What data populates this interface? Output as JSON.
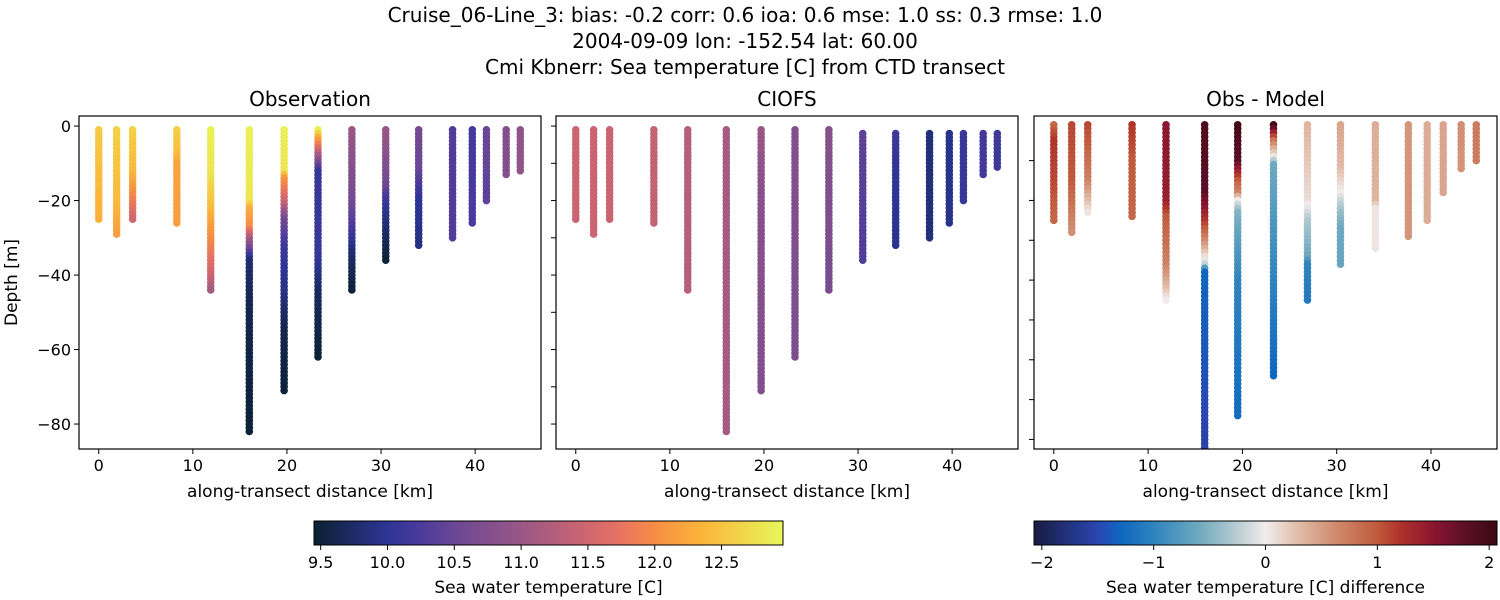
{
  "title_lines": [
    "Cruise_06-Line_3: bias: -0.2  corr: 0.6  ioa: 0.6  mse: 1.0  ss: 0.3  rmse: 1.0",
    "2004-09-09 lon: -152.54 lat: 60.00",
    "Cmi Kbnerr: Sea temperature [C] from CTD transect"
  ],
  "chart_data": [
    {
      "type": "scatter",
      "title": "Observation",
      "xlabel": "along-transect distance [km]",
      "ylabel": "Depth [m]",
      "xlim": [
        -2.1,
        47
      ],
      "ylim": [
        -86.7,
        2.7
      ],
      "xticks": [
        0,
        10,
        20,
        30,
        40
      ],
      "yticks": [
        0,
        -20,
        -40,
        -60,
        -80
      ],
      "colorbar": "temp",
      "stations": [
        {
          "x": 0,
          "profile": [
            [
              -1,
              12.55
            ],
            [
              -25,
              12.3
            ]
          ]
        },
        {
          "x": 1.9,
          "profile": [
            [
              -1,
              12.6
            ],
            [
              -20,
              12.4
            ],
            [
              -29,
              12.15
            ]
          ]
        },
        {
          "x": 3.6,
          "profile": [
            [
              -1,
              12.6
            ],
            [
              -12,
              12.4
            ],
            [
              -18,
              12.0
            ],
            [
              -25,
              11.5
            ]
          ]
        },
        {
          "x": 8.3,
          "profile": [
            [
              -1,
              12.6
            ],
            [
              -8,
              12.4
            ],
            [
              -10,
              12.2
            ],
            [
              -26,
              12.15
            ]
          ]
        },
        {
          "x": 11.9,
          "profile": [
            [
              -1,
              12.9
            ],
            [
              -12,
              12.8
            ],
            [
              -20,
              12.5
            ],
            [
              -28,
              12.1
            ],
            [
              -40,
              11.5
            ],
            [
              -44,
              11.1
            ]
          ]
        },
        {
          "x": 16.0,
          "profile": [
            [
              -1,
              12.9
            ],
            [
              -20,
              12.8
            ],
            [
              -22,
              12.3
            ],
            [
              -27,
              12.0
            ],
            [
              -30,
              11.2
            ],
            [
              -34,
              10.3
            ],
            [
              -36,
              9.8
            ],
            [
              -50,
              9.6
            ],
            [
              -82,
              9.5
            ]
          ]
        },
        {
          "x": 19.7,
          "profile": [
            [
              -1,
              12.9
            ],
            [
              -12,
              12.8
            ],
            [
              -14,
              12.1
            ],
            [
              -20,
              11.5
            ],
            [
              -25,
              10.6
            ],
            [
              -33,
              10.1
            ],
            [
              -45,
              9.9
            ],
            [
              -55,
              9.6
            ],
            [
              -71,
              9.5
            ]
          ]
        },
        {
          "x": 23.3,
          "profile": [
            [
              -1,
              12.9
            ],
            [
              -3,
              12.3
            ],
            [
              -6,
              11.6
            ],
            [
              -10,
              10.6
            ],
            [
              -12,
              10.1
            ],
            [
              -35,
              10.1
            ],
            [
              -45,
              9.7
            ],
            [
              -62,
              9.5
            ]
          ]
        },
        {
          "x": 26.9,
          "profile": [
            [
              -1,
              11.0
            ],
            [
              -20,
              10.6
            ],
            [
              -28,
              10.2
            ],
            [
              -34,
              9.8
            ],
            [
              -44,
              9.5
            ]
          ]
        },
        {
          "x": 30.5,
          "profile": [
            [
              -1,
              11.0
            ],
            [
              -15,
              10.6
            ],
            [
              -22,
              10.0
            ],
            [
              -30,
              9.7
            ],
            [
              -36,
              9.5
            ]
          ]
        },
        {
          "x": 34.0,
          "profile": [
            [
              -1,
              10.6
            ],
            [
              -12,
              10.5
            ],
            [
              -20,
              10.0
            ],
            [
              -32,
              9.9
            ]
          ]
        },
        {
          "x": 37.6,
          "profile": [
            [
              -1,
              10.3
            ],
            [
              -30,
              10.3
            ]
          ]
        },
        {
          "x": 39.7,
          "profile": [
            [
              -1,
              10.2
            ],
            [
              -26,
              10.25
            ]
          ]
        },
        {
          "x": 41.2,
          "profile": [
            [
              -1,
              10.5
            ],
            [
              -20,
              10.4
            ]
          ]
        },
        {
          "x": 43.3,
          "profile": [
            [
              -1,
              10.75
            ],
            [
              -13,
              10.75
            ]
          ]
        },
        {
          "x": 44.8,
          "profile": [
            [
              -1,
              10.9
            ],
            [
              -12,
              10.9
            ]
          ]
        }
      ]
    },
    {
      "type": "scatter",
      "title": "CIOFS",
      "xlabel": "along-transect distance [km]",
      "xlim": [
        -2.1,
        47
      ],
      "ylim": [
        -86.7,
        2.7
      ],
      "xticks": [
        0,
        10,
        20,
        30,
        40
      ],
      "yticks": [
        0,
        -10,
        -20,
        -30,
        -40,
        -50,
        -60,
        -70,
        -80
      ],
      "colorbar": "temp",
      "stations": [
        {
          "x": 0,
          "profile": [
            [
              -1,
              11.45
            ],
            [
              -25,
              11.45
            ]
          ]
        },
        {
          "x": 1.9,
          "profile": [
            [
              -1,
              11.45
            ],
            [
              -29,
              11.45
            ]
          ]
        },
        {
          "x": 3.6,
          "profile": [
            [
              -1,
              11.45
            ],
            [
              -25,
              11.45
            ]
          ]
        },
        {
          "x": 8.3,
          "profile": [
            [
              -1,
              11.4
            ],
            [
              -26,
              11.4
            ]
          ]
        },
        {
          "x": 11.9,
          "profile": [
            [
              -1,
              11.25
            ],
            [
              -44,
              11.25
            ]
          ]
        },
        {
          "x": 16.0,
          "profile": [
            [
              -1,
              11.1
            ],
            [
              -82,
              11.1
            ]
          ]
        },
        {
          "x": 19.7,
          "profile": [
            [
              -1,
              11.0
            ],
            [
              -20,
              10.8
            ],
            [
              -71,
              10.75
            ]
          ]
        },
        {
          "x": 23.3,
          "profile": [
            [
              -1,
              10.75
            ],
            [
              -62,
              10.7
            ]
          ]
        },
        {
          "x": 26.9,
          "profile": [
            [
              -1,
              10.8
            ],
            [
              -44,
              10.65
            ]
          ]
        },
        {
          "x": 30.5,
          "profile": [
            [
              -2,
              10.4
            ],
            [
              -36,
              10.3
            ]
          ]
        },
        {
          "x": 34.0,
          "profile": [
            [
              -2,
              10.15
            ],
            [
              -10,
              10.05
            ],
            [
              -32,
              9.95
            ]
          ]
        },
        {
          "x": 37.6,
          "profile": [
            [
              -2,
              9.85
            ],
            [
              -30,
              9.85
            ]
          ]
        },
        {
          "x": 39.7,
          "profile": [
            [
              -2,
              9.95
            ],
            [
              -26,
              9.95
            ]
          ]
        },
        {
          "x": 41.2,
          "profile": [
            [
              -2,
              10.1
            ],
            [
              -20,
              10.1
            ]
          ]
        },
        {
          "x": 43.3,
          "profile": [
            [
              -2,
              10.2
            ],
            [
              -13,
              10.2
            ]
          ]
        },
        {
          "x": 44.8,
          "profile": [
            [
              -2,
              10.15
            ],
            [
              -11,
              10.15
            ]
          ]
        }
      ]
    },
    {
      "type": "scatter",
      "title": "Obs - Model",
      "xlabel": "along-transect distance [km]",
      "xlim": [
        -2.1,
        47
      ],
      "ylim": [
        -82.4,
        1.2
      ],
      "xticks": [
        0,
        10,
        20,
        30,
        40
      ],
      "yticks": [
        -10,
        -20,
        -30,
        -40,
        -50,
        -60,
        -70,
        -80
      ],
      "colorbar": "diff",
      "stations": [
        {
          "x": 0,
          "profile": [
            [
              -1,
              0.9
            ],
            [
              -5,
              1.2
            ],
            [
              -15,
              1.1
            ],
            [
              -25,
              0.9
            ]
          ]
        },
        {
          "x": 1.9,
          "profile": [
            [
              -1,
              1.1
            ],
            [
              -15,
              1.0
            ],
            [
              -28,
              0.6
            ]
          ]
        },
        {
          "x": 3.6,
          "profile": [
            [
              -1,
              1.1
            ],
            [
              -15,
              0.7
            ],
            [
              -20,
              0.3
            ],
            [
              -23,
              0.05
            ]
          ]
        },
        {
          "x": 8.3,
          "profile": [
            [
              -1,
              1.2
            ],
            [
              -10,
              1.0
            ],
            [
              -24,
              0.9
            ]
          ]
        },
        {
          "x": 11.9,
          "profile": [
            [
              -1,
              1.5
            ],
            [
              -20,
              1.4
            ],
            [
              -24,
              1.0
            ],
            [
              -36,
              0.7
            ],
            [
              -42,
              0.3
            ],
            [
              -45,
              0.0
            ]
          ]
        },
        {
          "x": 16.0,
          "profile": [
            [
              -1,
              1.9
            ],
            [
              -18,
              1.8
            ],
            [
              -24,
              1.3
            ],
            [
              -28,
              0.9
            ],
            [
              -32,
              0.4
            ],
            [
              -36,
              -0.2
            ],
            [
              -38,
              -1.3
            ],
            [
              -60,
              -1.4
            ],
            [
              -90,
              -1.6
            ]
          ]
        },
        {
          "x": 19.5,
          "profile": [
            [
              -1,
              2.0
            ],
            [
              -10,
              1.8
            ],
            [
              -15,
              1.0
            ],
            [
              -18,
              0.7
            ],
            [
              -20,
              0.0
            ],
            [
              -23,
              -0.5
            ],
            [
              -30,
              -0.7
            ],
            [
              -40,
              -1.0
            ],
            [
              -74,
              -1.25
            ]
          ]
        },
        {
          "x": 23.3,
          "profile": [
            [
              -1,
              2.0
            ],
            [
              -3,
              1.4
            ],
            [
              -5,
              0.8
            ],
            [
              -7,
              0.4
            ],
            [
              -9,
              0.05
            ],
            [
              -11,
              -0.6
            ],
            [
              -40,
              -1.0
            ],
            [
              -64,
              -1.3
            ]
          ]
        },
        {
          "x": 26.9,
          "profile": [
            [
              -1,
              0.35
            ],
            [
              -20,
              0.1
            ],
            [
              -25,
              -0.3
            ],
            [
              -34,
              -0.6
            ],
            [
              -36,
              -1.0
            ],
            [
              -45,
              -1.1
            ]
          ]
        },
        {
          "x": 30.4,
          "profile": [
            [
              -1,
              0.45
            ],
            [
              -12,
              0.3
            ],
            [
              -18,
              0.0
            ],
            [
              -23,
              -0.4
            ],
            [
              -27,
              -0.6
            ],
            [
              -36,
              -0.65
            ]
          ]
        },
        {
          "x": 34.1,
          "profile": [
            [
              -1,
              0.4
            ],
            [
              -20,
              0.35
            ],
            [
              -22,
              0.05
            ],
            [
              -32,
              0.05
            ]
          ]
        },
        {
          "x": 37.6,
          "profile": [
            [
              -1,
              0.55
            ],
            [
              -29,
              0.55
            ]
          ]
        },
        {
          "x": 39.6,
          "profile": [
            [
              -1,
              0.4
            ],
            [
              -25,
              0.4
            ]
          ]
        },
        {
          "x": 41.3,
          "profile": [
            [
              -1,
              0.45
            ],
            [
              -18,
              0.45
            ]
          ]
        },
        {
          "x": 43.2,
          "profile": [
            [
              -1,
              0.6
            ],
            [
              -12,
              0.55
            ]
          ]
        },
        {
          "x": 44.8,
          "profile": [
            [
              -1,
              0.75
            ],
            [
              -10,
              0.75
            ]
          ]
        }
      ]
    }
  ],
  "colorbars": {
    "temp": {
      "label": "Sea water temperature [C]",
      "range": [
        9.45,
        12.96
      ],
      "ticks": [
        9.5,
        10.0,
        10.5,
        11.0,
        11.5,
        12.0,
        12.5
      ],
      "tick_labels": [
        "9.5",
        "10.0",
        "10.5",
        "11.0",
        "11.5",
        "12.0",
        "12.5"
      ],
      "stops": [
        [
          9.45,
          "#0a2030"
        ],
        [
          10.0,
          "#2d3595"
        ],
        [
          10.25,
          "#4a3a9c"
        ],
        [
          10.5,
          "#6a4794"
        ],
        [
          11.0,
          "#9a5786"
        ],
        [
          11.5,
          "#cf6670"
        ],
        [
          11.75,
          "#e87460"
        ],
        [
          12.0,
          "#f68d45"
        ],
        [
          12.35,
          "#fbb53a"
        ],
        [
          12.96,
          "#e8f75a"
        ]
      ]
    },
    "diff": {
      "label": "Sea water temperature [C] difference",
      "range": [
        -2.07,
        2.07
      ],
      "ticks": [
        -2,
        -1,
        0,
        1,
        2
      ],
      "tick_labels": [
        "−2",
        "−1",
        "0",
        "1",
        "2"
      ],
      "stops": [
        [
          -2.07,
          "#181c43"
        ],
        [
          -1.5,
          "#2a45b0"
        ],
        [
          -1.3,
          "#0f66c0"
        ],
        [
          -1.0,
          "#2f84bd"
        ],
        [
          -0.6,
          "#6ea9bf"
        ],
        [
          -0.3,
          "#b0c8cf"
        ],
        [
          0,
          "#f1ecec"
        ],
        [
          0.3,
          "#e1bca8"
        ],
        [
          0.6,
          "#d18e72"
        ],
        [
          1.0,
          "#c05a3c"
        ],
        [
          1.2,
          "#b0332a"
        ],
        [
          1.5,
          "#8a1530"
        ],
        [
          1.8,
          "#5a0e25"
        ],
        [
          2.07,
          "#3c0912"
        ]
      ]
    }
  }
}
